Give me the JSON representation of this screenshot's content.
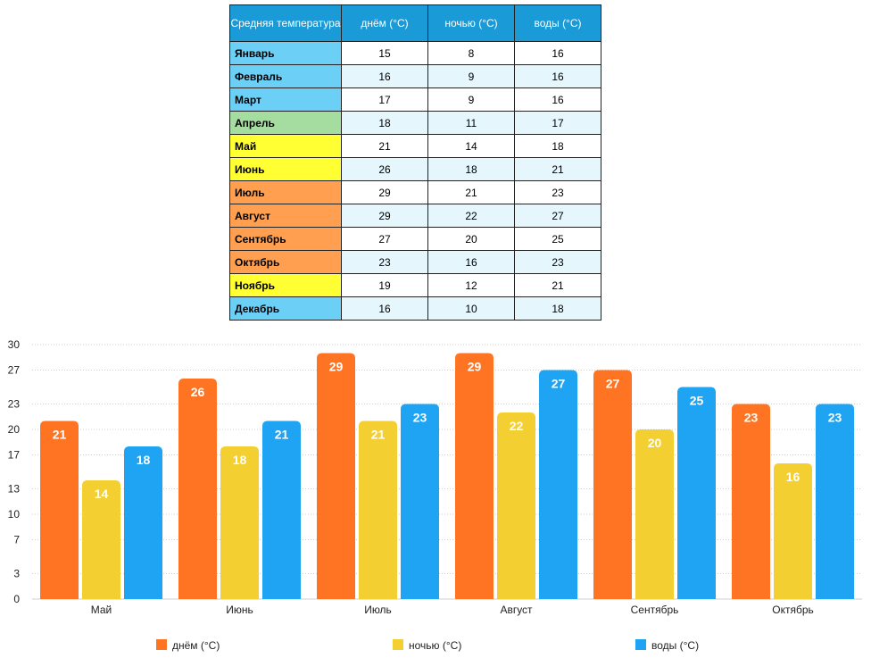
{
  "table": {
    "headers": [
      "Средняя температура",
      "днём (°C)",
      "ночью (°C)",
      "воды (°C)"
    ],
    "rows": [
      {
        "month": "Январь",
        "day": "15",
        "night": "8",
        "water": "16",
        "color": "#6ccff6"
      },
      {
        "month": "Февраль",
        "day": "16",
        "night": "9",
        "water": "16",
        "color": "#6ccff6"
      },
      {
        "month": "Март",
        "day": "17",
        "night": "9",
        "water": "16",
        "color": "#6ccff6"
      },
      {
        "month": "Апрель",
        "day": "18",
        "night": "11",
        "water": "17",
        "color": "#a5dca0"
      },
      {
        "month": "Май",
        "day": "21",
        "night": "14",
        "water": "18",
        "color": "#ffff33"
      },
      {
        "month": "Июнь",
        "day": "26",
        "night": "18",
        "water": "21",
        "color": "#ffff33"
      },
      {
        "month": "Июль",
        "day": "29",
        "night": "21",
        "water": "23",
        "color": "#ff9f4f"
      },
      {
        "month": "Август",
        "day": "29",
        "night": "22",
        "water": "27",
        "color": "#ff9f4f"
      },
      {
        "month": "Сентябрь",
        "day": "27",
        "night": "20",
        "water": "25",
        "color": "#ff9f4f"
      },
      {
        "month": "Октябрь",
        "day": "23",
        "night": "16",
        "water": "23",
        "color": "#ff9f4f"
      },
      {
        "month": "Ноябрь",
        "day": "19",
        "night": "12",
        "water": "21",
        "color": "#ffff33"
      },
      {
        "month": "Декабрь",
        "day": "16",
        "night": "10",
        "water": "18",
        "color": "#6ccff6"
      }
    ]
  },
  "chart_data": {
    "type": "bar",
    "categories": [
      "Май",
      "Июнь",
      "Июль",
      "Август",
      "Сентябрь",
      "Октябрь"
    ],
    "series": [
      {
        "name": "днём (°C)",
        "values": [
          21,
          26,
          29,
          29,
          27,
          23
        ],
        "color": "#ff7422"
      },
      {
        "name": "ночью (°C)",
        "values": [
          14,
          18,
          21,
          22,
          20,
          16
        ],
        "color": "#f4cf31"
      },
      {
        "name": "воды (°C)",
        "values": [
          18,
          21,
          23,
          27,
          25,
          23
        ],
        "color": "#1ea4f2"
      }
    ],
    "yticks": [
      "0",
      "3",
      "7",
      "10",
      "13",
      "17",
      "20",
      "23",
      "27",
      "30"
    ],
    "ylim": [
      0,
      30
    ],
    "grid": true,
    "legend": "bottom"
  }
}
